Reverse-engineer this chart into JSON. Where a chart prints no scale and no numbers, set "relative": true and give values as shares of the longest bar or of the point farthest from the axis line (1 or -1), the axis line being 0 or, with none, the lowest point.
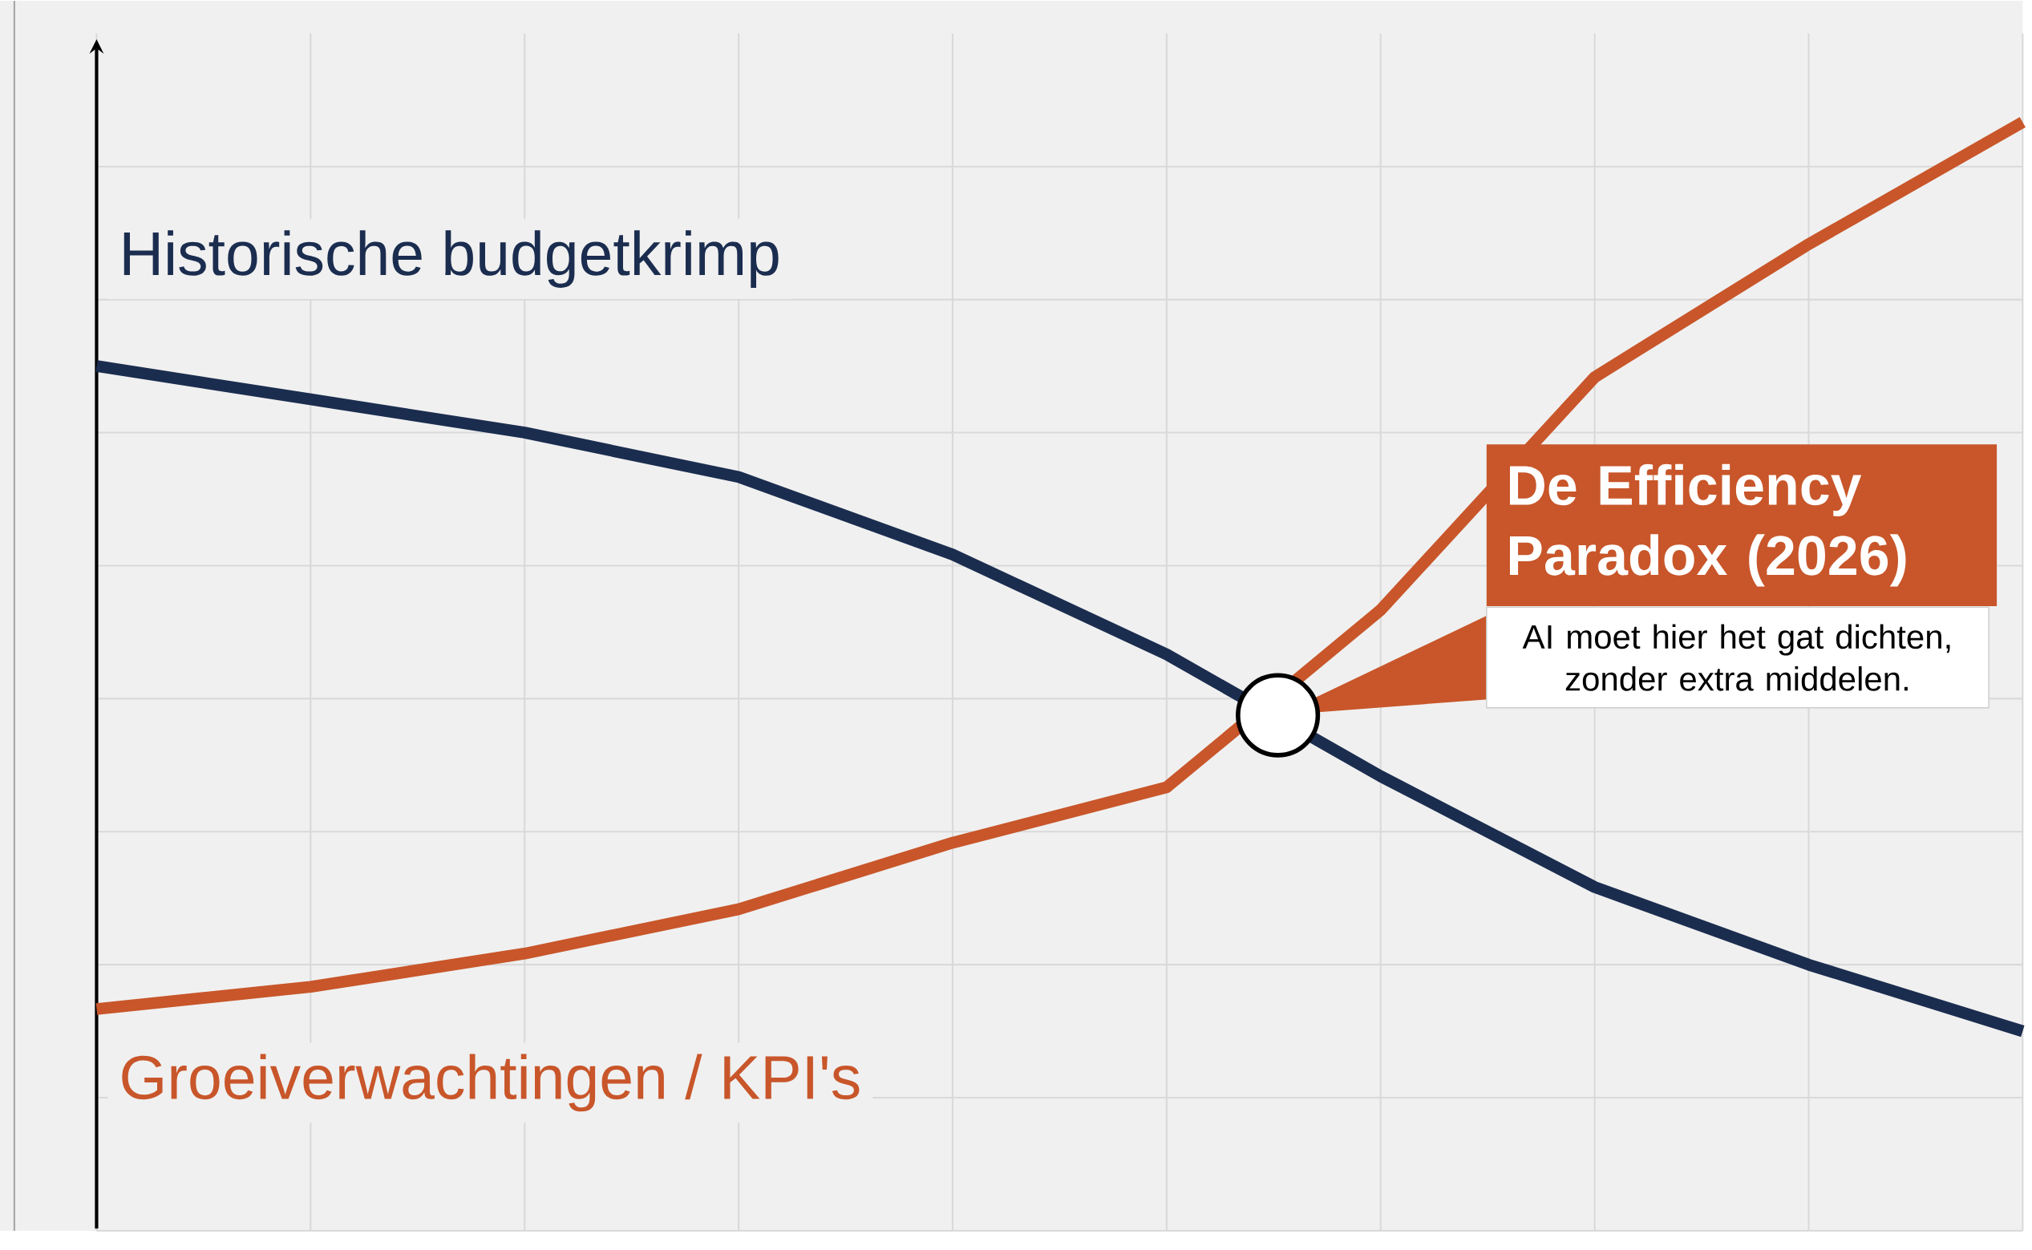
{
  "chart_data": {
    "type": "line",
    "relative": true,
    "grid": true,
    "marker": "none",
    "line_style": "solid",
    "categories": [
      null,
      null,
      null,
      null,
      null,
      null,
      null,
      null,
      null,
      null
    ],
    "series": [
      {
        "name": "Historische budgetkrimp",
        "color": "#1b2d4f",
        "values": [
          0.78,
          0.75,
          0.72,
          0.68,
          0.61,
          0.52,
          0.41,
          0.31,
          0.24,
          0.18
        ]
      },
      {
        "name": "Groeiverwachtingen / KPI's",
        "color": "#c8562a",
        "values": [
          0.2,
          0.22,
          0.25,
          0.29,
          0.35,
          0.4,
          0.56,
          0.77,
          0.89,
          1.0
        ]
      }
    ],
    "annotations": [
      "De Efficiency Paradox (2026)",
      "AI moet hier het gat dichten, zonder extra middelen."
    ]
  }
}
